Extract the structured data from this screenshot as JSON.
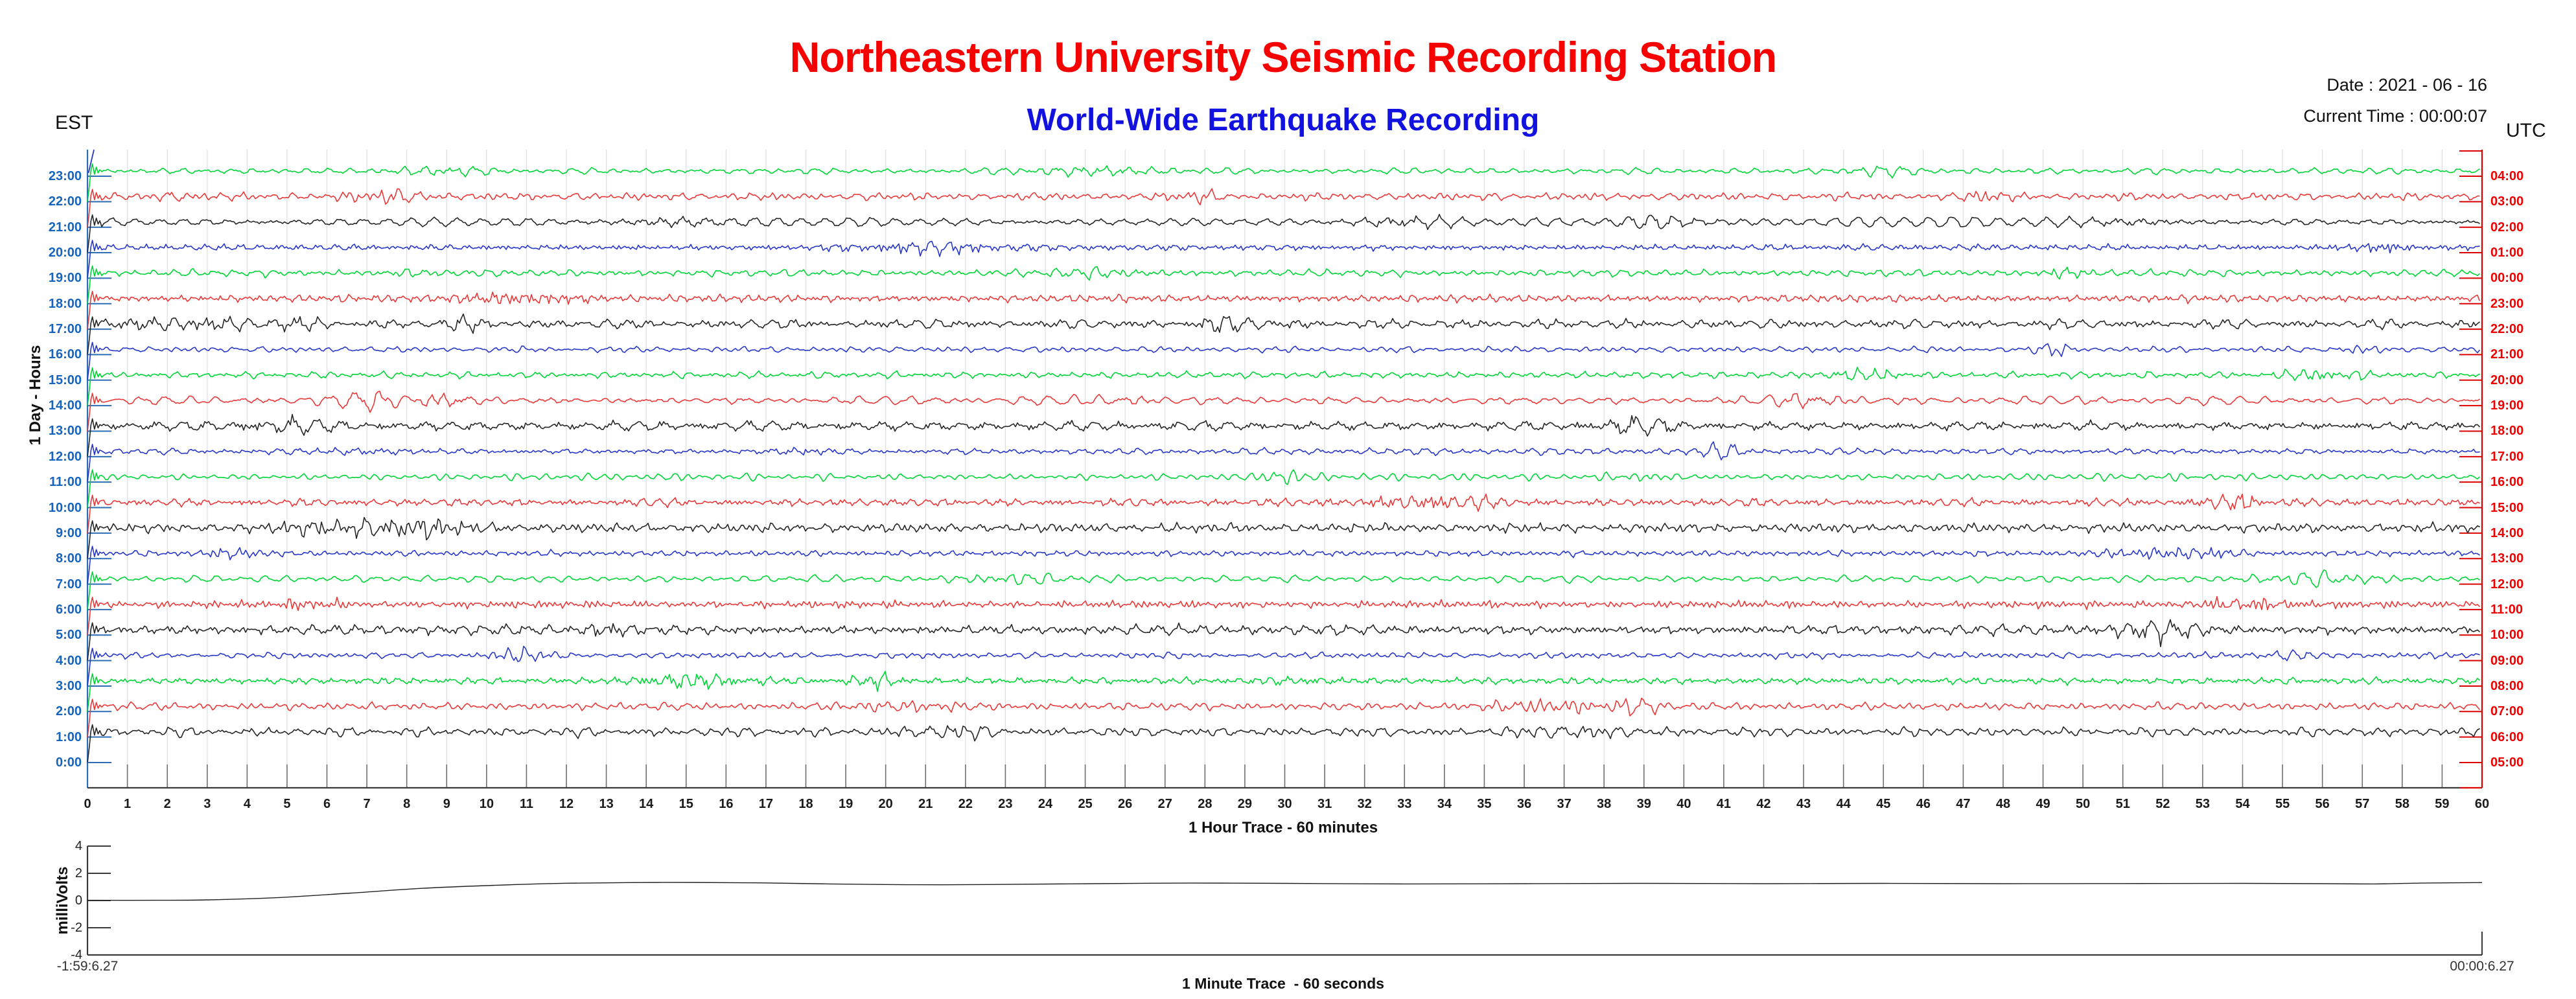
{
  "header": {
    "title": "Northeastern University Seismic Recording Station",
    "subtitle": "World-Wide Earthquake Recording",
    "date_line": "Date : 2021 - 06 - 16",
    "time_line": "Current Time : 00:00:07",
    "left_tz": "EST",
    "right_tz": "UTC"
  },
  "colors": {
    "title": "#f60000",
    "subtitle": "#1212e0",
    "est_labels": "#1565c0",
    "left_axis": "#2d6db5",
    "utc_labels": "#ee0000",
    "right_axis": "#dd0000",
    "grid": "#dedede",
    "x_axis": "#3a3a3a",
    "minute_tick": "#6f6f6f",
    "trace_green": "#00d537",
    "trace_red": "#e93838",
    "trace_black": "#262626",
    "trace_blue": "#2737c8"
  },
  "chart_data": [
    {
      "type": "line",
      "title": "1 Hour Trace - 60 minutes",
      "ylabel": "1 Day - Hours",
      "x_range": [
        0,
        60
      ],
      "x_ticks": [
        0,
        1,
        2,
        3,
        4,
        5,
        6,
        7,
        8,
        9,
        10,
        11,
        12,
        13,
        14,
        15,
        16,
        17,
        18,
        19,
        20,
        21,
        22,
        23,
        24,
        25,
        26,
        27,
        28,
        29,
        30,
        31,
        32,
        33,
        34,
        35,
        36,
        37,
        38,
        39,
        40,
        41,
        42,
        43,
        44,
        45,
        46,
        47,
        48,
        49,
        50,
        51,
        52,
        53,
        54,
        55,
        56,
        57,
        58,
        59,
        60
      ],
      "grid": true,
      "left_axis_tz": "EST",
      "right_axis_tz": "UTC",
      "rows": [
        {
          "est": "23:00",
          "utc": "04:00",
          "color": "green",
          "amp": 3.1,
          "seed": 11
        },
        {
          "est": "22:00",
          "utc": "03:00",
          "color": "red",
          "amp": 3.5,
          "seed": 22
        },
        {
          "est": "21:00",
          "utc": "02:00",
          "color": "black",
          "amp": 4.1,
          "seed": 33
        },
        {
          "est": "20:00",
          "utc": "01:00",
          "color": "blue",
          "amp": 2.8,
          "seed": 44
        },
        {
          "est": "19:00",
          "utc": "00:00",
          "color": "green",
          "amp": 3.2,
          "seed": 55
        },
        {
          "est": "18:00",
          "utc": "23:00",
          "color": "red",
          "amp": 3.4,
          "seed": 66
        },
        {
          "est": "17:00",
          "utc": "22:00",
          "color": "black",
          "amp": 4.2,
          "seed": 77
        },
        {
          "est": "16:00",
          "utc": "21:00",
          "color": "blue",
          "amp": 2.7,
          "seed": 88
        },
        {
          "est": "15:00",
          "utc": "20:00",
          "color": "green",
          "amp": 3.0,
          "seed": 99
        },
        {
          "est": "14:00",
          "utc": "19:00",
          "color": "red",
          "amp": 3.6,
          "seed": 110
        },
        {
          "est": "13:00",
          "utc": "18:00",
          "color": "black",
          "amp": 4.0,
          "seed": 121
        },
        {
          "est": "12:00",
          "utc": "17:00",
          "color": "blue",
          "amp": 2.9,
          "seed": 132
        },
        {
          "est": "11:00",
          "utc": "16:00",
          "color": "green",
          "amp": 3.1,
          "seed": 143
        },
        {
          "est": "10:00",
          "utc": "15:00",
          "color": "red",
          "amp": 3.5,
          "seed": 154
        },
        {
          "est": "9:00",
          "utc": "14:00",
          "color": "black",
          "amp": 4.3,
          "seed": 165
        },
        {
          "est": "8:00",
          "utc": "13:00",
          "color": "blue",
          "amp": 2.7,
          "seed": 176
        },
        {
          "est": "7:00",
          "utc": "12:00",
          "color": "green",
          "amp": 3.2,
          "seed": 187
        },
        {
          "est": "6:00",
          "utc": "11:00",
          "color": "red",
          "amp": 3.4,
          "seed": 198
        },
        {
          "est": "5:00",
          "utc": "10:00",
          "color": "black",
          "amp": 4.5,
          "seed": 209
        },
        {
          "est": "4:00",
          "utc": "09:00",
          "color": "blue",
          "amp": 2.8,
          "seed": 220
        },
        {
          "est": "3:00",
          "utc": "08:00",
          "color": "green",
          "amp": 3.1,
          "seed": 231
        },
        {
          "est": "2:00",
          "utc": "07:00",
          "color": "red",
          "amp": 3.5,
          "seed": 242
        },
        {
          "est": "1:00",
          "utc": "06:00",
          "color": "black",
          "amp": 4.1,
          "seed": 253
        },
        {
          "est": "0:00",
          "utc": "05:00",
          "color": "blue",
          "amp": 0,
          "seed": 264,
          "partial": true
        }
      ]
    },
    {
      "type": "line",
      "title": "1 Minute Trace  - 60 seconds",
      "ylabel": "milliVolts",
      "ylim": [
        -4,
        4
      ],
      "yticks": [
        "4",
        "2",
        "0",
        "-2",
        "-4"
      ],
      "x_start_label": "-1:59:6.27",
      "x_end_label": "00:00:6.27",
      "points": [
        [
          0.0,
          0.02
        ],
        [
          0.03,
          0.02
        ],
        [
          0.05,
          0.05
        ],
        [
          0.08,
          0.22
        ],
        [
          0.11,
          0.55
        ],
        [
          0.14,
          0.9
        ],
        [
          0.17,
          1.12
        ],
        [
          0.2,
          1.27
        ],
        [
          0.24,
          1.33
        ],
        [
          0.28,
          1.3
        ],
        [
          0.31,
          1.22
        ],
        [
          0.345,
          1.16
        ],
        [
          0.38,
          1.18
        ],
        [
          0.42,
          1.24
        ],
        [
          0.46,
          1.28
        ],
        [
          0.5,
          1.26
        ],
        [
          0.55,
          1.22
        ],
        [
          0.6,
          1.24
        ],
        [
          0.65,
          1.26
        ],
        [
          0.7,
          1.24
        ],
        [
          0.75,
          1.26
        ],
        [
          0.8,
          1.24
        ],
        [
          0.85,
          1.25
        ],
        [
          0.9,
          1.26
        ],
        [
          0.935,
          1.24
        ],
        [
          0.955,
          1.22
        ],
        [
          0.975,
          1.28
        ],
        [
          1.0,
          1.32
        ]
      ]
    }
  ]
}
